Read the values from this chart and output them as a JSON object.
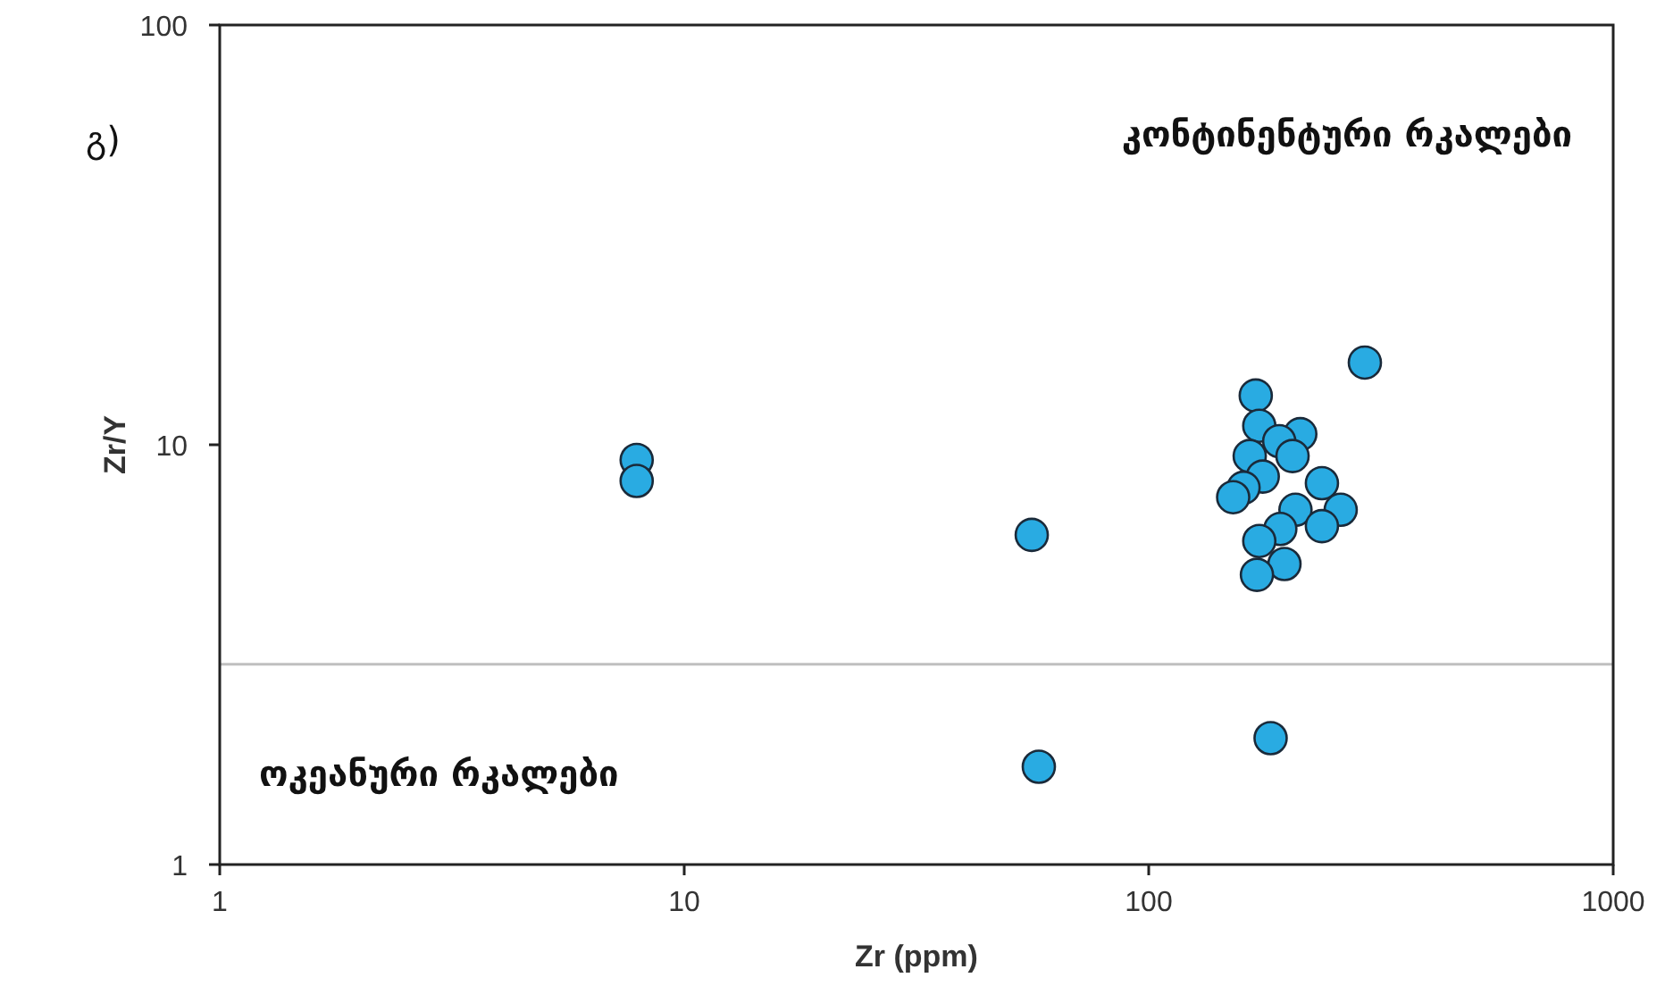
{
  "chart_data": {
    "type": "scatter",
    "xlabel": "Zr (ppm)",
    "ylabel": "Zr/Y",
    "log": "xy",
    "xlim": [
      1,
      1000
    ],
    "ylim": [
      1,
      100
    ],
    "xticks": [
      1,
      10,
      100,
      1000
    ],
    "yticks": [
      1,
      10,
      100
    ],
    "marker": "circle",
    "annotations": [
      "გ)",
      "კონტინენტური რკალები",
      "ოკეანური რკალები"
    ],
    "ref_lines": [
      {
        "axis": "y",
        "value": 3,
        "color": "#bfbfbf"
      }
    ],
    "series": [
      {
        "color": "#29abe2",
        "x": [
          7.9,
          7.9,
          56,
          58,
          183,
          292,
          170,
          173,
          212,
          191,
          204,
          165,
          176,
          160,
          152,
          236,
          207,
          259,
          236,
          192,
          173,
          196,
          171
        ],
        "values": [
          9.2,
          8.2,
          6.1,
          1.71,
          2.0,
          15.7,
          13.1,
          11.1,
          10.6,
          10.2,
          9.4,
          9.4,
          8.4,
          7.9,
          7.5,
          8.1,
          7.0,
          7.0,
          6.4,
          6.3,
          5.9,
          5.2,
          4.9
        ]
      }
    ]
  }
}
